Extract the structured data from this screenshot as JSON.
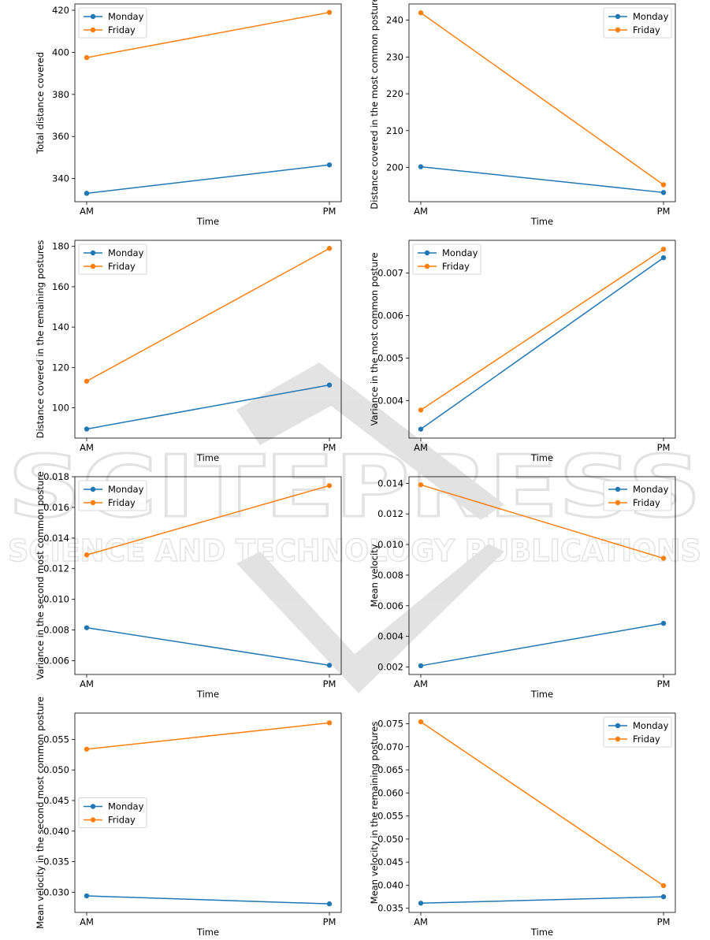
{
  "watermark": {
    "main": "SCITEPRESS",
    "sub": "SCIENCE AND TECHNOLOGY PUBLICATIONS"
  },
  "colors": {
    "monday": "#1f77b4",
    "friday": "#ff7f0e"
  },
  "chart_data": [
    {
      "type": "line",
      "xlabel": "Time",
      "ylabel": "Total distance covered",
      "categories": [
        "AM",
        "PM"
      ],
      "ylim": [
        329,
        423
      ],
      "yticks": [
        340,
        360,
        380,
        400,
        420
      ],
      "yticklabels": [
        "340",
        "360",
        "380",
        "400",
        "420"
      ],
      "legend_loc": "upper left",
      "series": [
        {
          "name": "Monday",
          "values": [
            333.0,
            346.5
          ]
        },
        {
          "name": "Friday",
          "values": [
            397.5,
            419.0
          ]
        }
      ]
    },
    {
      "type": "line",
      "xlabel": "Time",
      "ylabel": "Distance covered in the most common posture",
      "categories": [
        "AM",
        "PM"
      ],
      "ylim": [
        190.7,
        244.4
      ],
      "yticks": [
        200,
        210,
        220,
        230,
        240
      ],
      "yticklabels": [
        "200",
        "210",
        "220",
        "230",
        "240"
      ],
      "legend_loc": "upper right",
      "series": [
        {
          "name": "Monday",
          "values": [
            200.2,
            193.2
          ]
        },
        {
          "name": "Friday",
          "values": [
            242.0,
            195.3
          ]
        }
      ]
    },
    {
      "type": "line",
      "xlabel": "Time",
      "ylabel": "Distance covered in the remaining postures",
      "categories": [
        "AM",
        "PM"
      ],
      "ylim": [
        85,
        183
      ],
      "yticks": [
        100,
        120,
        140,
        160,
        180
      ],
      "yticklabels": [
        "100",
        "120",
        "140",
        "160",
        "180"
      ],
      "legend_loc": "upper left",
      "series": [
        {
          "name": "Monday",
          "values": [
            89.5,
            111.3
          ]
        },
        {
          "name": "Friday",
          "values": [
            113.2,
            179.0
          ]
        }
      ]
    },
    {
      "type": "line",
      "xlabel": "Time",
      "ylabel": "Variance in the most common posture",
      "categories": [
        "AM",
        "PM"
      ],
      "ylim": [
        0.00312,
        0.00777
      ],
      "yticks": [
        0.004,
        0.005,
        0.006,
        0.007
      ],
      "yticklabels": [
        "0.004",
        "0.005",
        "0.006",
        "0.007"
      ],
      "legend_loc": "upper left",
      "series": [
        {
          "name": "Monday",
          "values": [
            0.00333,
            0.00736
          ]
        },
        {
          "name": "Friday",
          "values": [
            0.00378,
            0.00756
          ]
        }
      ]
    },
    {
      "type": "line",
      "xlabel": "Time",
      "ylabel": "Variance in the second most common posture",
      "categories": [
        "AM",
        "PM"
      ],
      "ylim": [
        0.0051,
        0.018
      ],
      "yticks": [
        0.006,
        0.008,
        0.01,
        0.012,
        0.014,
        0.016,
        0.018
      ],
      "yticklabels": [
        "0.006",
        "0.008",
        "0.010",
        "0.012",
        "0.014",
        "0.016",
        "0.018"
      ],
      "legend_loc": "upper left",
      "series": [
        {
          "name": "Monday",
          "values": [
            0.00815,
            0.0057
          ]
        },
        {
          "name": "Friday",
          "values": [
            0.0129,
            0.01742
          ]
        }
      ]
    },
    {
      "type": "line",
      "xlabel": "Time",
      "ylabel": "Mean velocity",
      "categories": [
        "AM",
        "PM"
      ],
      "ylim": [
        0.00151,
        0.01443
      ],
      "yticks": [
        0.002,
        0.004,
        0.006,
        0.008,
        0.01,
        0.012,
        0.014
      ],
      "yticklabels": [
        "0.002",
        "0.004",
        "0.006",
        "0.008",
        "0.010",
        "0.012",
        "0.014"
      ],
      "legend_loc": "upper right",
      "series": [
        {
          "name": "Monday",
          "values": [
            0.00208,
            0.00485
          ]
        },
        {
          "name": "Friday",
          "values": [
            0.0139,
            0.0091
          ]
        }
      ]
    },
    {
      "type": "line",
      "xlabel": "Time",
      "ylabel": "Mean velocity in the second most common posture",
      "categories": [
        "AM",
        "PM"
      ],
      "ylim": [
        0.0267,
        0.0593
      ],
      "yticks": [
        0.03,
        0.035,
        0.04,
        0.045,
        0.05,
        0.055
      ],
      "yticklabels": [
        "0.030",
        "0.035",
        "0.040",
        "0.045",
        "0.050",
        "0.055"
      ],
      "legend_loc": "center left",
      "series": [
        {
          "name": "Monday",
          "values": [
            0.0294,
            0.0281
          ]
        },
        {
          "name": "Friday",
          "values": [
            0.0534,
            0.0577
          ]
        }
      ]
    },
    {
      "type": "line",
      "xlabel": "Time",
      "ylabel": "Mean velocity in the remaining postures",
      "categories": [
        "AM",
        "PM"
      ],
      "ylim": [
        0.0341,
        0.0773
      ],
      "yticks": [
        0.035,
        0.04,
        0.045,
        0.05,
        0.055,
        0.06,
        0.065,
        0.07,
        0.075
      ],
      "yticklabels": [
        "0.035",
        "0.040",
        "0.045",
        "0.050",
        "0.055",
        "0.060",
        "0.065",
        "0.070",
        "0.075"
      ],
      "legend_loc": "upper right",
      "series": [
        {
          "name": "Monday",
          "values": [
            0.0361,
            0.0375
          ]
        },
        {
          "name": "Friday",
          "values": [
            0.0754,
            0.0399
          ]
        }
      ]
    }
  ]
}
